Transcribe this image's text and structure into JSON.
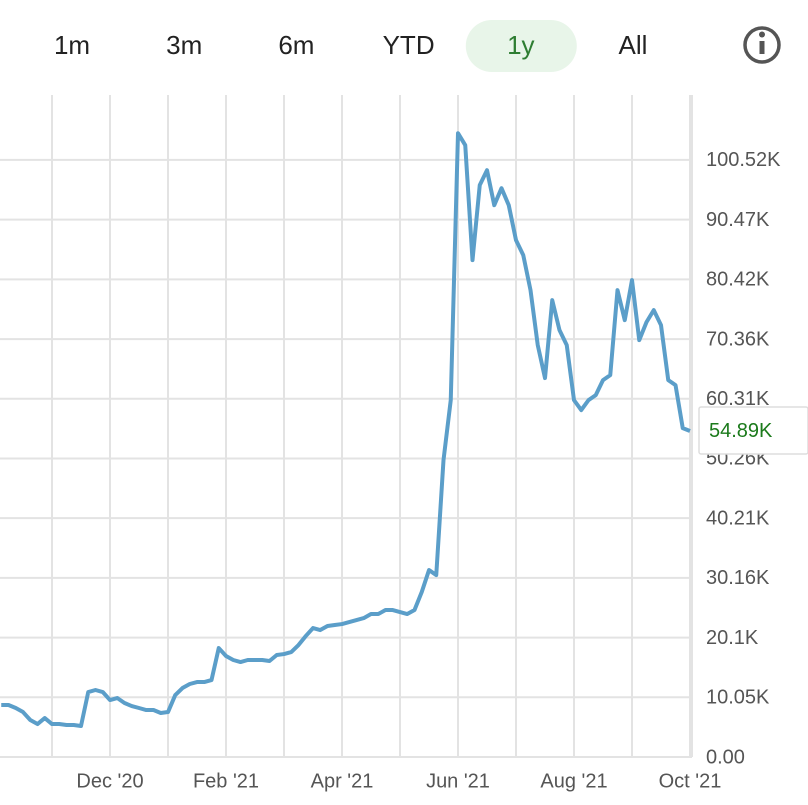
{
  "tabs": {
    "items": [
      "1m",
      "3m",
      "6m",
      "YTD",
      "1y",
      "All"
    ],
    "selected": 4
  },
  "chart_data": {
    "type": "line",
    "categories": [
      null,
      null,
      null,
      null,
      null,
      null,
      null,
      null,
      null,
      null,
      null,
      null,
      null,
      null,
      null,
      "Dec '20",
      null,
      null,
      null,
      null,
      null,
      null,
      null,
      null,
      null,
      null,
      null,
      null,
      null,
      null,
      null,
      "Feb '21",
      null,
      null,
      null,
      null,
      null,
      null,
      null,
      null,
      null,
      null,
      null,
      null,
      null,
      null,
      null,
      "Apr '21",
      null,
      null,
      null,
      null,
      null,
      null,
      null,
      null,
      null,
      null,
      null,
      null,
      null,
      null,
      null,
      "Jun '21",
      null,
      null,
      null,
      null,
      null,
      null,
      null,
      null,
      null,
      null,
      null,
      null,
      null,
      null,
      null,
      "Aug '21",
      null,
      null,
      null,
      null,
      null,
      null,
      null,
      null,
      null,
      null,
      null,
      null,
      null,
      null,
      null,
      "Oct '21"
    ],
    "series": [
      {
        "color": "#5b9ec9",
        "values": [
          8750,
          8750,
          8250,
          7570,
          6230,
          5550,
          6560,
          5550,
          5550,
          5390,
          5390,
          5220,
          10940,
          11280,
          10940,
          9590,
          9930,
          9090,
          8580,
          8250,
          7910,
          7910,
          7410,
          7570,
          10430,
          11610,
          12290,
          12620,
          12620,
          12960,
          18340,
          17000,
          16330,
          15990,
          16330,
          16330,
          16330,
          16160,
          17170,
          17330,
          17670,
          18850,
          20360,
          21710,
          21370,
          22050,
          22220,
          22380,
          22720,
          23060,
          23390,
          24070,
          24070,
          24740,
          24740,
          24400,
          24070,
          24740,
          27770,
          31470,
          30630,
          49990,
          60080,
          105020,
          103000,
          83650,
          96270,
          98790,
          92900,
          95760,
          92900,
          87010,
          84490,
          78600,
          69340,
          63790,
          76910,
          71860,
          69340,
          60080,
          58400,
          60080,
          60930,
          63450,
          64290,
          78600,
          73550,
          80280,
          70180,
          73210,
          75230,
          72710,
          63450,
          62610,
          55370,
          54890
        ]
      }
    ],
    "current": {
      "value": 54890,
      "label": "54.89K"
    },
    "ylim": [
      0,
      111450
    ],
    "yticks": [
      {
        "value": 0,
        "label": "0.00"
      },
      {
        "value": 10050,
        "label": "10.05K"
      },
      {
        "value": 20100,
        "label": "20.1K"
      },
      {
        "value": 30160,
        "label": "30.16K"
      },
      {
        "value": 40210,
        "label": "40.21K"
      },
      {
        "value": 50260,
        "label": "50.26K"
      },
      {
        "value": 60310,
        "label": "60.31K"
      },
      {
        "value": 70360,
        "label": "70.36K"
      },
      {
        "value": 80420,
        "label": "80.42K"
      },
      {
        "value": 90470,
        "label": "90.47K"
      },
      {
        "value": 100520,
        "label": "100.52K"
      }
    ],
    "grid": true
  }
}
